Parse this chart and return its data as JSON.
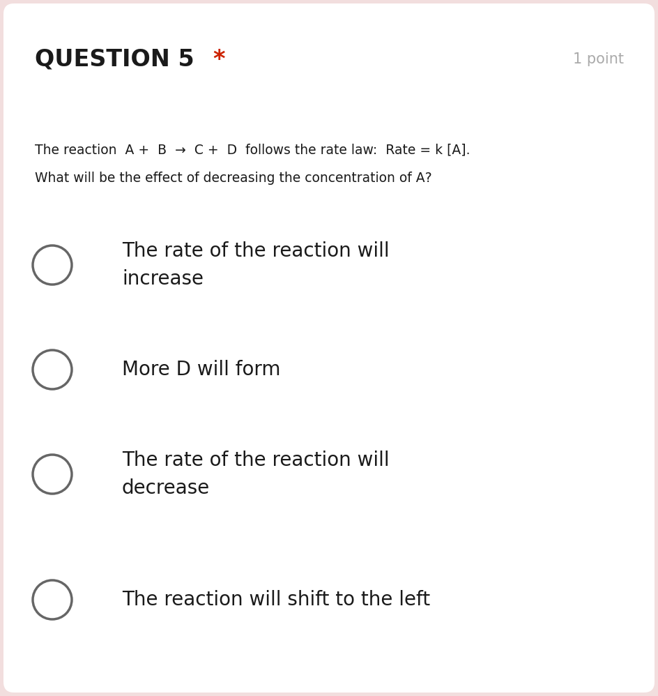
{
  "background_color": "#ffffff",
  "outer_background": "#f2dede",
  "question_label": "QUESTION 5",
  "question_star": "*",
  "star_color": "#cc2200",
  "points_label": "1 point",
  "points_color": "#aaaaaa",
  "question_text_line1": "The reaction  A +  B  →  C +  D  follows the rate law:  Rate = k [A].",
  "question_text_line2": "What will be the effect of decreasing the concentration of A?",
  "options": [
    "The rate of the reaction will\nincrease",
    "More D will form",
    "The rate of the reaction will\ndecrease",
    "The reaction will shift to the left"
  ],
  "option_font_size": 20,
  "question_font_size": 13.5,
  "header_font_size": 24,
  "points_font_size": 15,
  "circle_color": "#666666",
  "circle_lw": 2.5,
  "text_color": "#1a1a1a",
  "fig_width": 9.44,
  "fig_height": 9.98,
  "fig_dpi": 100
}
